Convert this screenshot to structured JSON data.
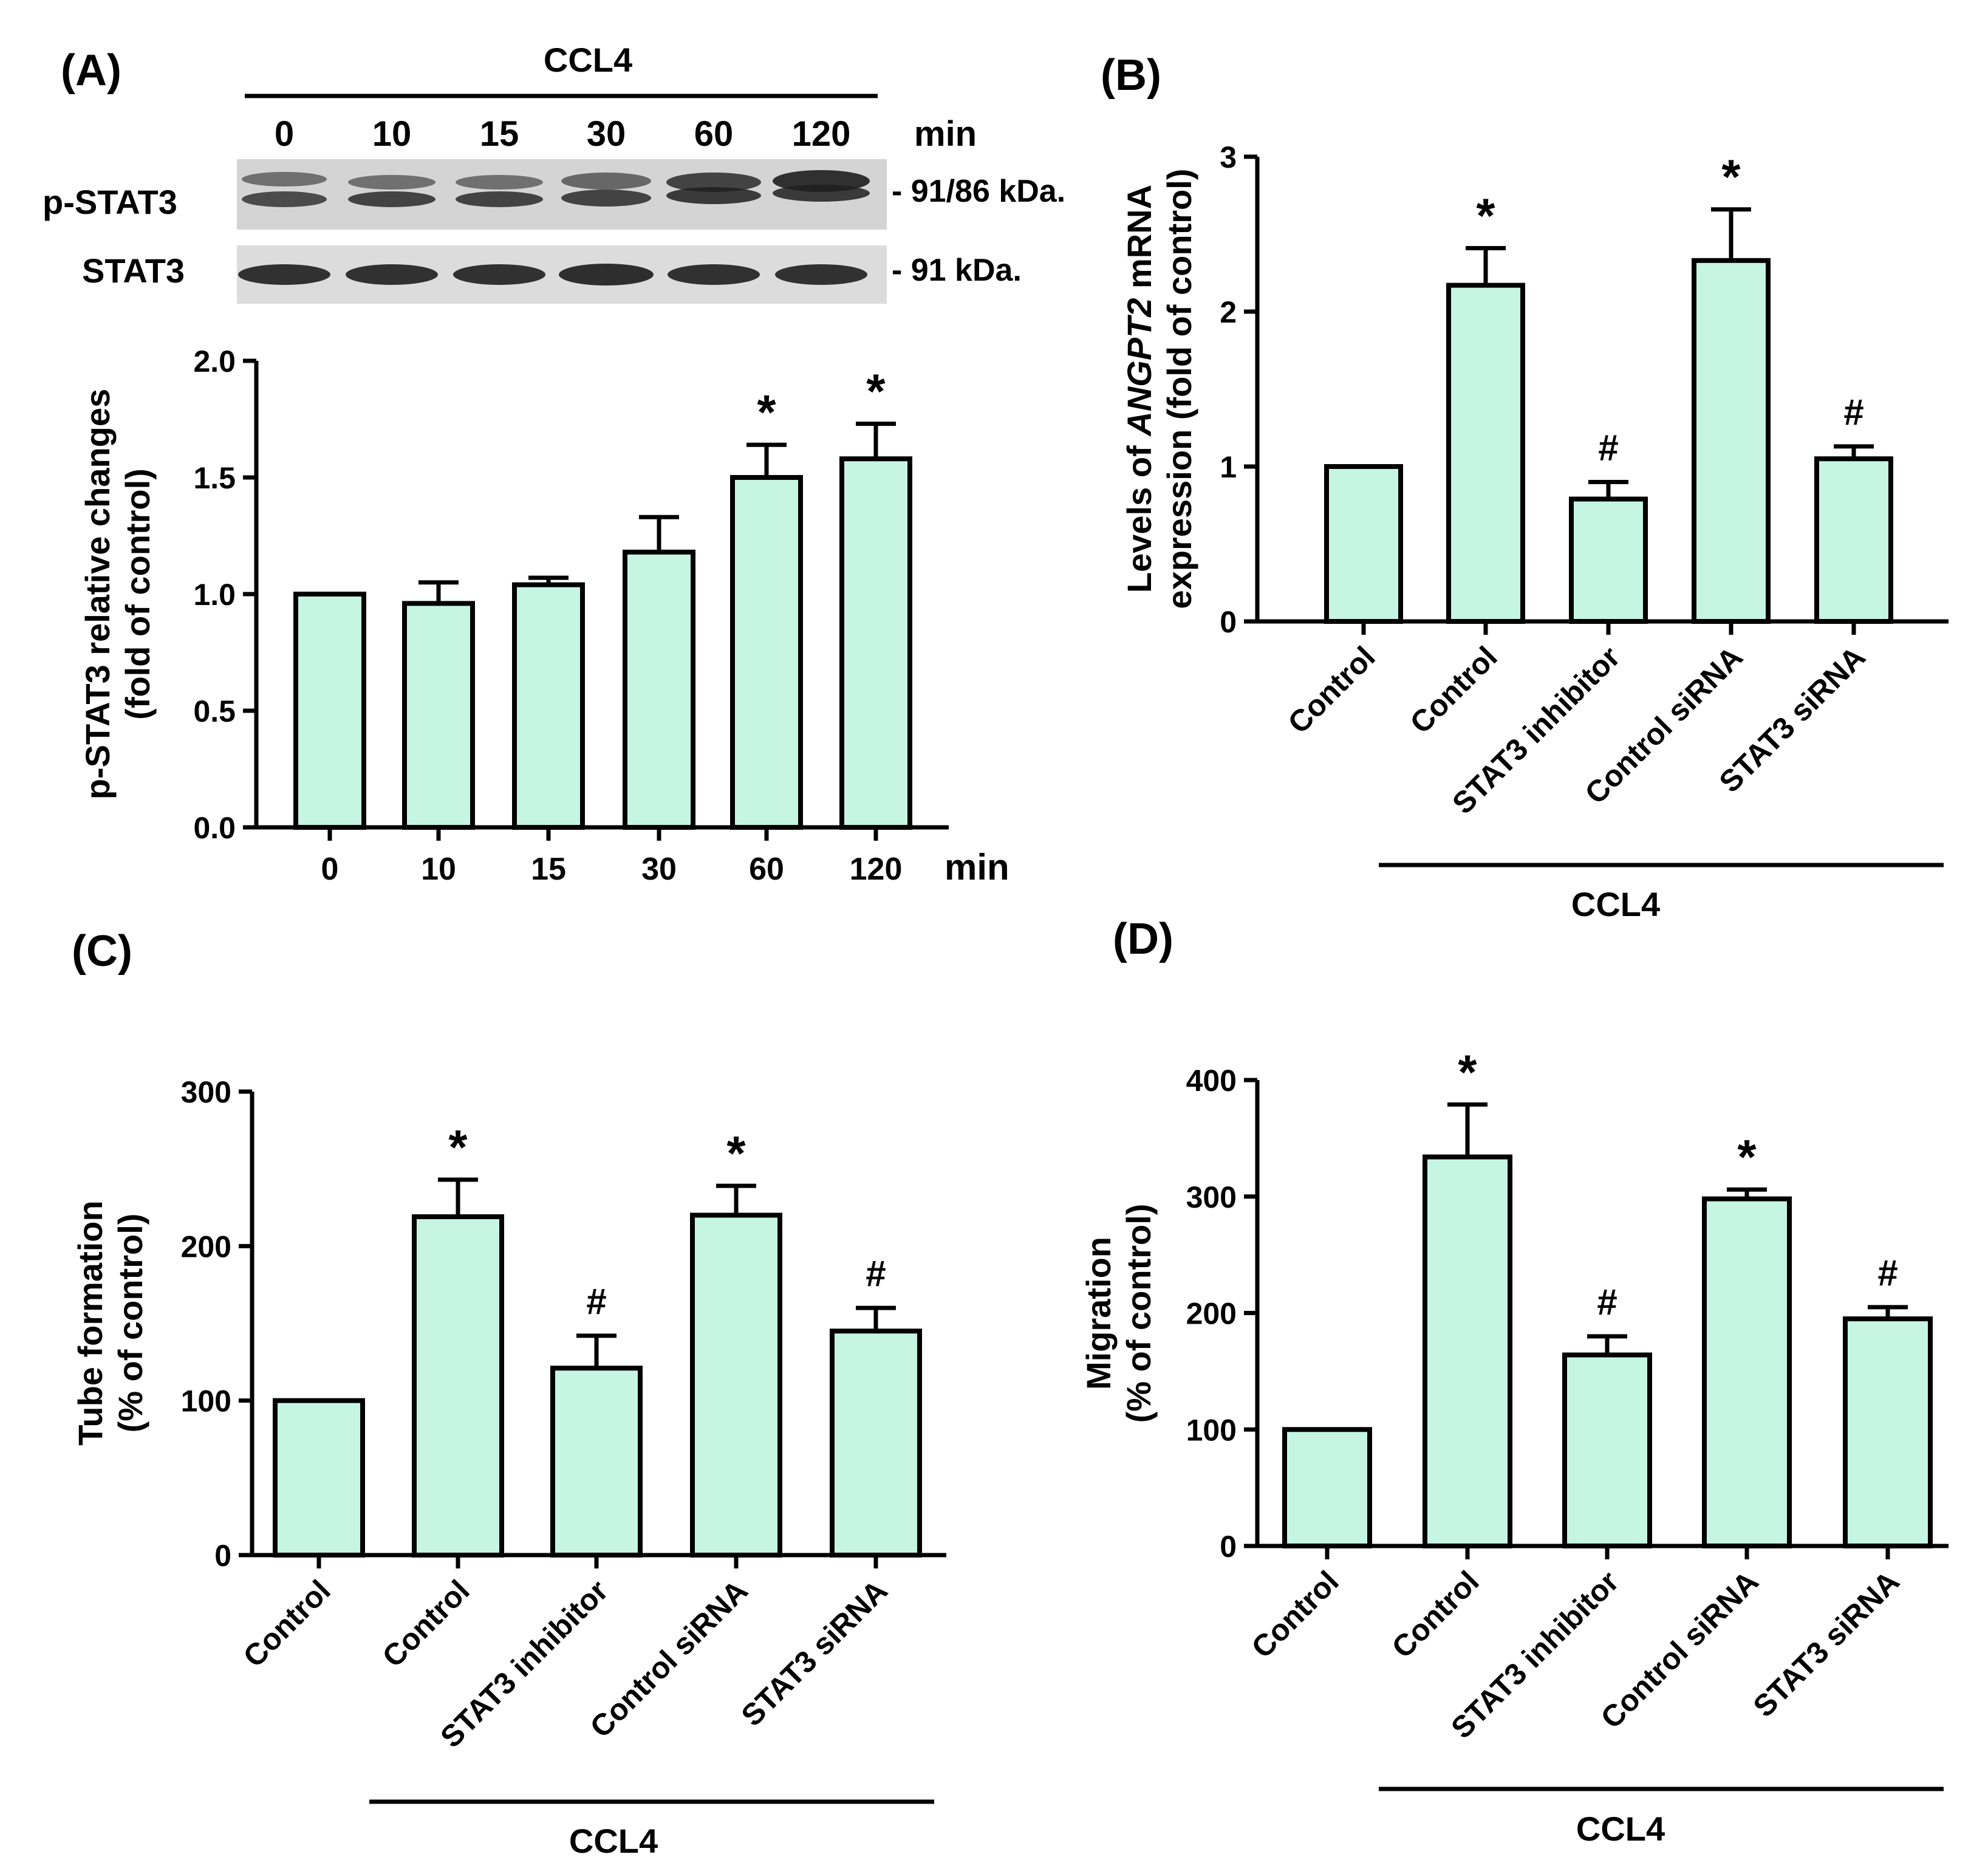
{
  "colors": {
    "bar_fill": "#c6f5e3",
    "bar_stroke": "#000000",
    "blot_background": "#d6d6d6",
    "band": "#1e1e1e"
  },
  "panel_a": {
    "label": "(A)",
    "treatment": "CCL4",
    "time_unit": "min",
    "lanes": [
      "0",
      "10",
      "15",
      "30",
      "60",
      "120"
    ],
    "blots": [
      {
        "name": "p-STAT3",
        "size": "- 91/86 kDa."
      },
      {
        "name": "STAT3",
        "size": "- 91 kDa."
      }
    ]
  },
  "panel_b": {
    "label": "(B)",
    "treatment": "CCL4"
  },
  "panel_c": {
    "label": "(C)",
    "treatment": "CCL4"
  },
  "panel_d": {
    "label": "(D)",
    "treatment": "CCL4"
  },
  "chart_data": [
    {
      "panel": "A",
      "type": "bar",
      "categories": [
        "0",
        "10",
        "15",
        "30",
        "60",
        "120"
      ],
      "values": [
        1.0,
        0.96,
        1.04,
        1.18,
        1.5,
        1.58
      ],
      "errors": [
        0,
        0.09,
        0.03,
        0.15,
        0.14,
        0.15
      ],
      "annotations": [
        "",
        "",
        "",
        "",
        "*",
        "*"
      ],
      "ylabel": [
        "p-STAT3 relative changes",
        "(fold of control)"
      ],
      "xlabel": "min",
      "ylim": [
        0,
        2.0
      ],
      "yticks": [
        "0.0",
        "0.5",
        "1.0",
        "1.5",
        "2.0"
      ]
    },
    {
      "panel": "B",
      "type": "bar",
      "categories": [
        "Control",
        "Control",
        "STAT3 inhibitor",
        "Control siRNA",
        "STAT3 siRNA"
      ],
      "values": [
        1.0,
        2.17,
        0.79,
        2.33,
        1.05
      ],
      "errors": [
        0,
        0.24,
        0.11,
        0.33,
        0.08
      ],
      "annotations": [
        "",
        "*",
        "#",
        "*",
        "#"
      ],
      "ylabel_line1_parts": [
        "Levels of ",
        "ANGPT2",
        " mRNA"
      ],
      "ylabel_line2": "expression (fold of control)",
      "group_label": "CCL4",
      "ylim": [
        0,
        3
      ],
      "yticks": [
        "0",
        "1",
        "2",
        "3"
      ]
    },
    {
      "panel": "C",
      "type": "bar",
      "categories": [
        "Control",
        "Control",
        "STAT3 inhibitor",
        "Control siRNA",
        "STAT3 siRNA"
      ],
      "values": [
        100,
        219,
        121,
        220,
        145
      ],
      "errors": [
        0,
        24,
        21,
        19,
        15
      ],
      "annotations": [
        "",
        "*",
        "#",
        "*",
        "#"
      ],
      "ylabel": [
        "Tube formation",
        "(% of control)"
      ],
      "group_label": "CCL4",
      "ylim": [
        0,
        300
      ],
      "yticks": [
        "0",
        "100",
        "200",
        "300"
      ]
    },
    {
      "panel": "D",
      "type": "bar",
      "categories": [
        "Control",
        "Control",
        "STAT3 inhibitor",
        "Control siRNA",
        "STAT3 siRNA"
      ],
      "values": [
        100,
        334,
        164,
        298,
        195
      ],
      "errors": [
        0,
        45,
        16,
        8,
        10
      ],
      "annotations": [
        "",
        "*",
        "#",
        "*",
        "#"
      ],
      "ylabel": [
        "Migration",
        "(% of control)"
      ],
      "group_label": "CCL4",
      "ylim": [
        0,
        400
      ],
      "yticks": [
        "0",
        "100",
        "200",
        "300",
        "400"
      ]
    }
  ]
}
